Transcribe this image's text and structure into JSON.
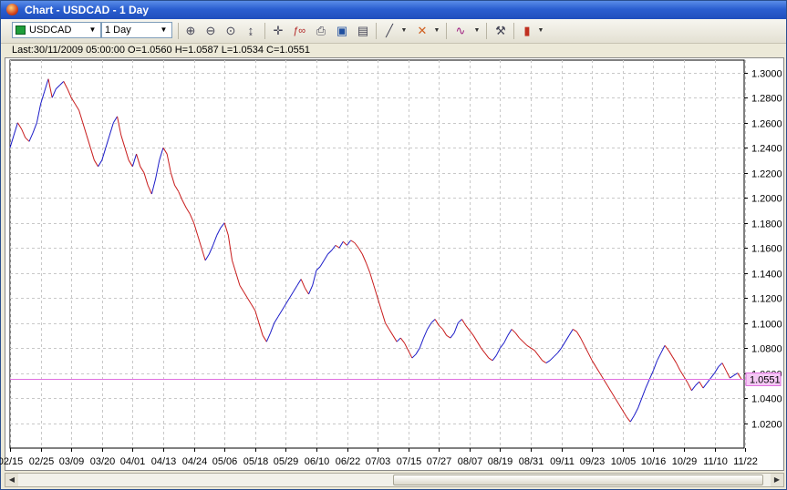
{
  "window": {
    "title": "Chart - USDCAD - 1 Day"
  },
  "toolbar": {
    "symbol": "USDCAD",
    "period": "1 Day",
    "icons": [
      "zoom-in-icon",
      "zoom-out-icon",
      "zoom-fit-icon",
      "scale-icon",
      "crosshair-icon",
      "indicator-icon",
      "print-icon",
      "save-icon",
      "document-icon",
      "line-tool-icon",
      "fibonacci-icon",
      "objects-icon",
      "settings-icon",
      "candlestick-icon"
    ]
  },
  "info": {
    "text": "Last:30/11/2009 05:00:00 O=1.0560 H=1.0587 L=1.0534 C=1.0551"
  },
  "chart_data": {
    "type": "line",
    "ylim": [
      1.0,
      1.31
    ],
    "y_ticks": [
      "1.3000",
      "1.2800",
      "1.2600",
      "1.2400",
      "1.2200",
      "1.2000",
      "1.1800",
      "1.1600",
      "1.1400",
      "1.1200",
      "1.1000",
      "1.0800",
      "1.0600",
      "1.0400",
      "1.0200"
    ],
    "y_tick_values": [
      1.3,
      1.28,
      1.26,
      1.24,
      1.22,
      1.2,
      1.18,
      1.16,
      1.14,
      1.12,
      1.1,
      1.08,
      1.06,
      1.04,
      1.02
    ],
    "x_ticks": [
      "02/15",
      "02/25",
      "03/09",
      "03/20",
      "04/01",
      "04/13",
      "04/24",
      "05/06",
      "05/18",
      "05/29",
      "06/10",
      "06/22",
      "07/03",
      "07/15",
      "07/27",
      "08/07",
      "08/19",
      "08/31",
      "09/11",
      "09/23",
      "10/05",
      "10/16",
      "10/29",
      "11/10",
      "11/22"
    ],
    "x_tick_index": [
      0,
      8,
      16,
      24,
      32,
      40,
      48,
      56,
      64,
      72,
      80,
      88,
      96,
      104,
      112,
      120,
      128,
      136,
      144,
      152,
      160,
      168,
      176,
      184,
      192
    ],
    "last_price": 1.0551,
    "last_price_label": "1.0551",
    "line_color_up": "#1c1cc8",
    "line_color_down": "#c81c1c",
    "current_line_color": "#e070e0",
    "grid": true,
    "closes": [
      1.24,
      1.25,
      1.26,
      1.255,
      1.248,
      1.245,
      1.252,
      1.26,
      1.275,
      1.285,
      1.295,
      1.28,
      1.287,
      1.29,
      1.293,
      1.287,
      1.28,
      1.275,
      1.27,
      1.26,
      1.25,
      1.24,
      1.23,
      1.225,
      1.23,
      1.24,
      1.25,
      1.26,
      1.265,
      1.25,
      1.24,
      1.23,
      1.225,
      1.235,
      1.225,
      1.22,
      1.21,
      1.203,
      1.215,
      1.23,
      1.24,
      1.235,
      1.22,
      1.21,
      1.205,
      1.198,
      1.192,
      1.187,
      1.18,
      1.17,
      1.16,
      1.15,
      1.155,
      1.162,
      1.17,
      1.176,
      1.18,
      1.17,
      1.15,
      1.14,
      1.13,
      1.125,
      1.12,
      1.115,
      1.11,
      1.1,
      1.09,
      1.085,
      1.092,
      1.1,
      1.105,
      1.11,
      1.115,
      1.12,
      1.125,
      1.13,
      1.135,
      1.128,
      1.123,
      1.13,
      1.142,
      1.145,
      1.15,
      1.155,
      1.158,
      1.162,
      1.16,
      1.165,
      1.162,
      1.166,
      1.164,
      1.16,
      1.155,
      1.148,
      1.14,
      1.13,
      1.12,
      1.11,
      1.1,
      1.095,
      1.09,
      1.085,
      1.088,
      1.084,
      1.078,
      1.072,
      1.075,
      1.08,
      1.088,
      1.095,
      1.1,
      1.103,
      1.098,
      1.095,
      1.09,
      1.088,
      1.092,
      1.1,
      1.103,
      1.098,
      1.094,
      1.09,
      1.085,
      1.08,
      1.076,
      1.072,
      1.07,
      1.074,
      1.08,
      1.084,
      1.09,
      1.095,
      1.092,
      1.088,
      1.085,
      1.082,
      1.08,
      1.078,
      1.074,
      1.07,
      1.068,
      1.07,
      1.073,
      1.076,
      1.08,
      1.085,
      1.09,
      1.095,
      1.093,
      1.088,
      1.082,
      1.076,
      1.07,
      1.065,
      1.06,
      1.055,
      1.05,
      1.045,
      1.04,
      1.035,
      1.03,
      1.025,
      1.021,
      1.026,
      1.032,
      1.04,
      1.048,
      1.055,
      1.062,
      1.07,
      1.076,
      1.082,
      1.078,
      1.073,
      1.068,
      1.062,
      1.057,
      1.052,
      1.046,
      1.05,
      1.053,
      1.048,
      1.052,
      1.056,
      1.06,
      1.065,
      1.068,
      1.062,
      1.056,
      1.058,
      1.06,
      1.0551
    ]
  }
}
